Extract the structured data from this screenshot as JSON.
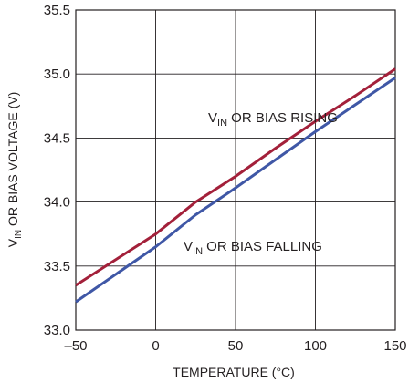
{
  "chart_data": {
    "type": "line",
    "xlabel": "TEMPERATURE (°C)",
    "ylabel": {
      "prefix": "V",
      "sub": "IN",
      "suffix": " OR BIAS VOLTAGE (V)"
    },
    "xlim": [
      -50,
      150
    ],
    "ylim": [
      33.0,
      35.5
    ],
    "x_ticks": [
      -50,
      0,
      50,
      100,
      150
    ],
    "x_tick_labels": [
      "–50",
      "0",
      "50",
      "100",
      "150"
    ],
    "y_ticks": [
      33.0,
      33.5,
      34.0,
      34.5,
      35.0,
      35.5
    ],
    "y_tick_labels": [
      "33.0",
      "33.5",
      "34.0",
      "34.5",
      "35.0",
      "35.5"
    ],
    "grid": true,
    "series": [
      {
        "name": {
          "prefix": "V",
          "sub": "IN",
          "suffix": " OR BIAS RISING"
        },
        "color": "#a3203a",
        "x": [
          -50,
          0,
          25,
          50,
          75,
          100,
          125,
          150
        ],
        "y": [
          33.35,
          33.75,
          34.0,
          34.2,
          34.42,
          34.63,
          34.83,
          35.04
        ]
      },
      {
        "name": {
          "prefix": "V",
          "sub": "IN",
          "suffix": " OR BIAS FALLING"
        },
        "color": "#3f57a6",
        "x": [
          -50,
          0,
          25,
          50,
          75,
          100,
          125,
          150
        ],
        "y": [
          33.22,
          33.65,
          33.9,
          34.11,
          34.33,
          34.55,
          34.76,
          34.97
        ]
      }
    ]
  }
}
